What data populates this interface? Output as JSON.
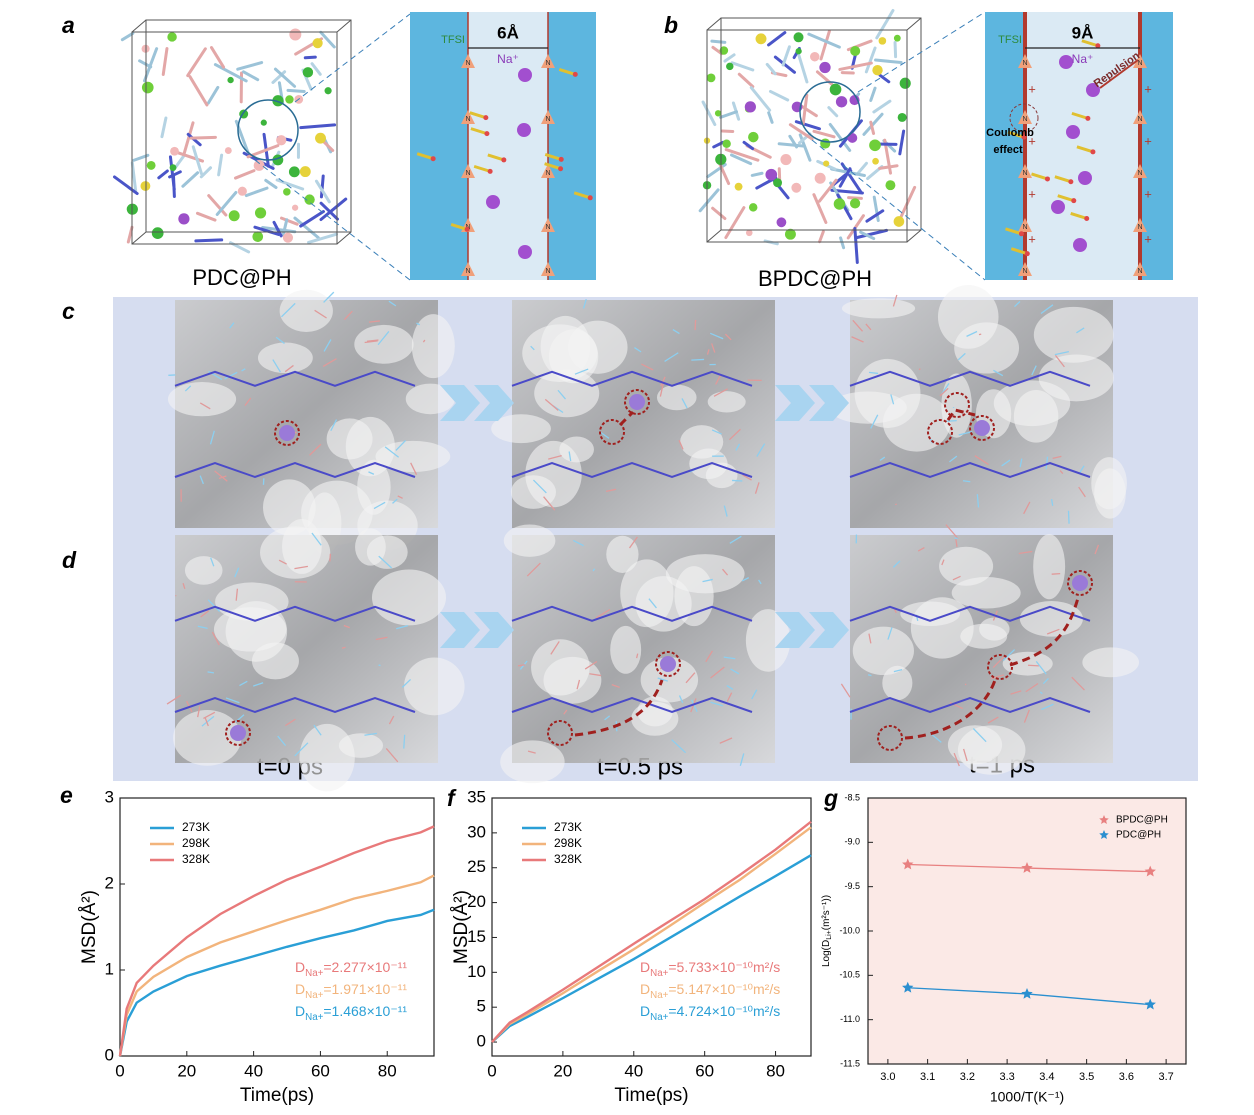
{
  "panels": {
    "a": {
      "letter": "a",
      "caption": "PDC@PH",
      "zoom": {
        "anion": "TFSI",
        "width": "6Å",
        "cation": "Na⁺",
        "atom": "N"
      }
    },
    "b": {
      "letter": "b",
      "caption": "BPDC@PH",
      "zoom": {
        "anion": "TFSI",
        "width": "9Å",
        "cation": "Na⁺",
        "atom": "N",
        "repulsion": "Repulsion",
        "coulomb": [
          "Coulomb",
          "effect"
        ],
        "charge": "+"
      }
    },
    "c": {
      "letter": "c"
    },
    "d": {
      "letter": "d"
    },
    "times": [
      "t=0 ps",
      "t=0.5 ps",
      "t=1 ps"
    ]
  },
  "chart_data": [
    {
      "type": "line",
      "label": "e",
      "xlabel": "Time(ps)",
      "ylabel": "MSD(Å²)",
      "xlim": [
        0,
        94
      ],
      "xticks": [
        0,
        20,
        40,
        60,
        80
      ],
      "ylim": [
        0,
        3
      ],
      "yticks": [
        0,
        1,
        2,
        3
      ],
      "legend": "upper left",
      "x": [
        0,
        2,
        5,
        10,
        20,
        30,
        40,
        50,
        60,
        70,
        80,
        90,
        94
      ],
      "series": [
        {
          "name": "273K",
          "color": "#2a9fd6",
          "values": [
            0,
            0.4,
            0.62,
            0.75,
            0.93,
            1.05,
            1.16,
            1.27,
            1.37,
            1.46,
            1.57,
            1.64,
            1.7
          ]
        },
        {
          "name": "298K",
          "color": "#f2b47c",
          "values": [
            0,
            0.48,
            0.75,
            0.92,
            1.15,
            1.32,
            1.45,
            1.58,
            1.7,
            1.83,
            1.92,
            2.02,
            2.1
          ]
        },
        {
          "name": "328K",
          "color": "#e8797a",
          "values": [
            0,
            0.55,
            0.85,
            1.05,
            1.38,
            1.65,
            1.86,
            2.05,
            2.2,
            2.36,
            2.5,
            2.6,
            2.67
          ]
        }
      ],
      "annotations": [
        {
          "color": "#e8797a",
          "segments": [
            {
              "text": "D"
            },
            {
              "text": "Na+",
              "shift": "sub"
            },
            {
              "text": "=2.277×10⁻¹¹"
            }
          ]
        },
        {
          "color": "#f2b47c",
          "segments": [
            {
              "text": "D"
            },
            {
              "text": "Na+",
              "shift": "sub"
            },
            {
              "text": "=1.971×10⁻¹¹"
            }
          ]
        },
        {
          "color": "#2a9fd6",
          "segments": [
            {
              "text": "D"
            },
            {
              "text": "Na+",
              "shift": "sub"
            },
            {
              "text": "=1.468×10⁻¹¹"
            }
          ]
        }
      ]
    },
    {
      "type": "line",
      "label": "f",
      "xlabel": "Time(ps)",
      "ylabel": "MSD(Å²)",
      "xlim": [
        0,
        90
      ],
      "xticks": [
        0,
        20,
        40,
        60,
        80
      ],
      "ylim": [
        -2,
        35
      ],
      "yticks": [
        0,
        5,
        10,
        15,
        20,
        25,
        30,
        35
      ],
      "legend": "upper left",
      "x": [
        0,
        5,
        10,
        20,
        30,
        40,
        50,
        60,
        70,
        80,
        90
      ],
      "series": [
        {
          "name": "273K",
          "color": "#2a9fd6",
          "values": [
            0,
            2.3,
            3.6,
            6.3,
            9.1,
            11.9,
            14.9,
            17.9,
            20.9,
            23.8,
            26.8
          ]
        },
        {
          "name": "298K",
          "color": "#f2b47c",
          "values": [
            0,
            2.6,
            4,
            7,
            10.2,
            13.3,
            16.6,
            20,
            23.3,
            27,
            30.8
          ]
        },
        {
          "name": "328K",
          "color": "#e8797a",
          "values": [
            0,
            2.8,
            4.3,
            7.5,
            10.8,
            14.1,
            17.3,
            20.5,
            24,
            27.6,
            31.6
          ]
        }
      ],
      "annotations": [
        {
          "color": "#e8797a",
          "segments": [
            {
              "text": "D"
            },
            {
              "text": "Na+",
              "shift": "sub"
            },
            {
              "text": "=5.733×10⁻¹⁰m²/s"
            }
          ]
        },
        {
          "color": "#f2b47c",
          "segments": [
            {
              "text": "D"
            },
            {
              "text": "Na+",
              "shift": "sub"
            },
            {
              "text": "=5.147×10⁻¹⁰m²/s"
            }
          ]
        },
        {
          "color": "#2a9fd6",
          "segments": [
            {
              "text": "D"
            },
            {
              "text": "Na+",
              "shift": "sub"
            },
            {
              "text": "=4.724×10⁻¹⁰m²/s"
            }
          ]
        }
      ]
    },
    {
      "type": "line",
      "marker": "star",
      "label": "g",
      "xlabel": "1000/T(K⁻¹)",
      "ylabel": [
        {
          "text": "Log(D"
        },
        {
          "text": "Li+",
          "shift": "sub"
        },
        {
          "text": "(m²s⁻¹))"
        }
      ],
      "background": "#fbe9e6",
      "legend": "upper right",
      "xlim": [
        2.95,
        3.75
      ],
      "xticks": [
        {
          "value": 3,
          "label": "3.0"
        },
        3.1,
        3.2,
        3.3,
        3.4,
        3.5,
        3.6,
        3.7
      ],
      "ylim": [
        -11.5,
        -8.5
      ],
      "yticks": [
        -11.5,
        {
          "value": -11,
          "label": "-11.0"
        },
        -10.5,
        {
          "value": -10,
          "label": "-10.0"
        },
        -9.5,
        {
          "value": -9,
          "label": "-9.0"
        },
        -8.5
      ],
      "x": [
        3.05,
        3.35,
        3.66
      ],
      "series": [
        {
          "name": "BPDC@PH",
          "color": "#e88080",
          "values": [
            -9.25,
            -9.29,
            -9.33
          ]
        },
        {
          "name": "PDC@PH",
          "color": "#2a8fd0",
          "values": [
            -10.64,
            -10.71,
            -10.83
          ]
        }
      ]
    }
  ]
}
